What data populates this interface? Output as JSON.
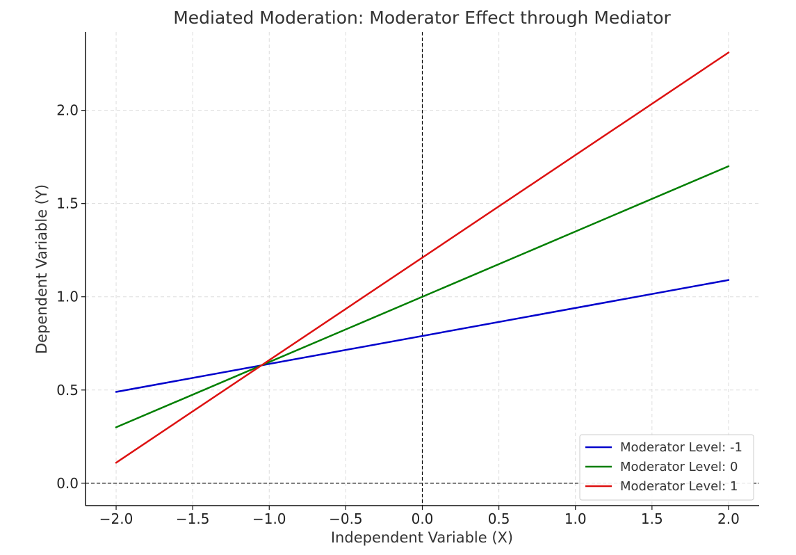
{
  "chart_data": {
    "type": "line",
    "title": "Mediated Moderation: Moderator Effect through Mediator",
    "xlabel": "Independent Variable (X)",
    "ylabel": "Dependent Variable (Y)",
    "xlim": [
      -2.2,
      2.2
    ],
    "ylim": [
      -0.12,
      2.42
    ],
    "xticks": [
      -2.0,
      -1.5,
      -1.0,
      -0.5,
      0.0,
      0.5,
      1.0,
      1.5,
      2.0
    ],
    "xtick_labels": [
      "−2.0",
      "−1.5",
      "−1.0",
      "−0.5",
      "0.0",
      "0.5",
      "1.0",
      "1.5",
      "2.0"
    ],
    "yticks": [
      0.0,
      0.5,
      1.0,
      1.5,
      2.0
    ],
    "ytick_labels": [
      "0.0",
      "0.5",
      "1.0",
      "1.5",
      "2.0"
    ],
    "grid": true,
    "reference_lines": {
      "x": 0,
      "y": 0
    },
    "legend_position": "lower-right",
    "series": [
      {
        "name": "Moderator Level: -1",
        "color": "#0000cc",
        "x": [
          -2.0,
          2.0
        ],
        "values": [
          0.49,
          1.09
        ]
      },
      {
        "name": "Moderator Level: 0",
        "color": "#007f00",
        "x": [
          -2.0,
          2.0
        ],
        "values": [
          0.3,
          1.7
        ]
      },
      {
        "name": "Moderator Level: 1",
        "color": "#dd1111",
        "x": [
          -2.0,
          2.0
        ],
        "values": [
          0.11,
          2.31
        ]
      }
    ]
  }
}
